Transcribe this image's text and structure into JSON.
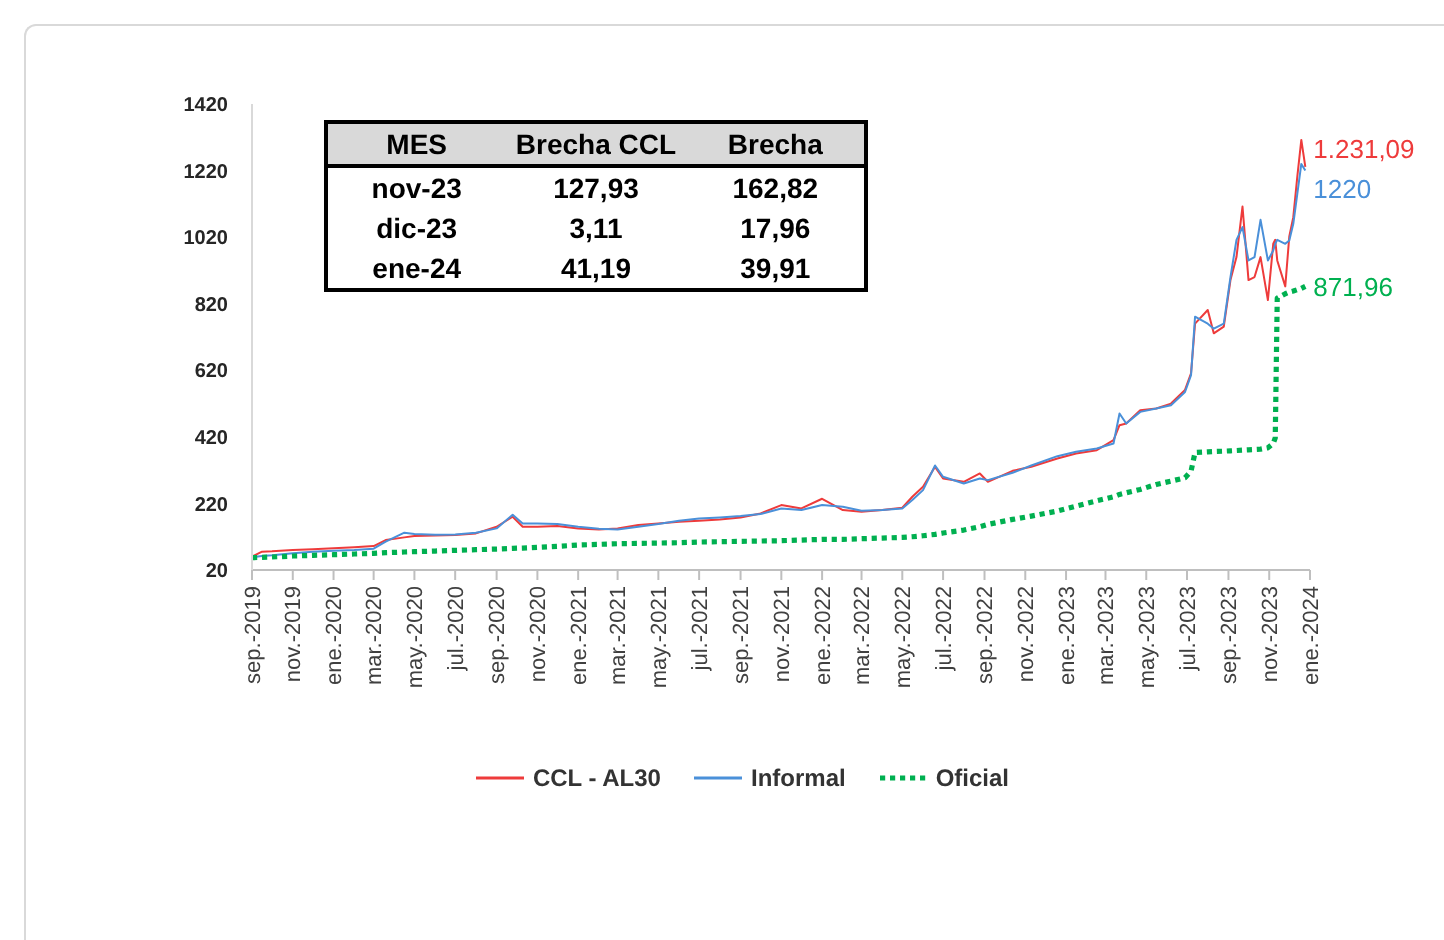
{
  "chart_data": {
    "type": "line",
    "x": [
      "2019-09-01",
      "2019-09-16",
      "2019-10-01",
      "2019-11-01",
      "2019-12-01",
      "2020-01-01",
      "2020-02-01",
      "2020-03-01",
      "2020-03-19",
      "2020-04-16",
      "2020-05-01",
      "2020-06-01",
      "2020-07-01",
      "2020-08-01",
      "2020-09-01",
      "2020-09-25",
      "2020-10-10",
      "2020-11-01",
      "2020-12-01",
      "2021-01-01",
      "2021-02-01",
      "2021-03-01",
      "2021-04-01",
      "2021-05-01",
      "2021-06-01",
      "2021-07-01",
      "2021-08-01",
      "2021-09-01",
      "2021-10-01",
      "2021-11-01",
      "2021-12-01",
      "2022-01-01",
      "2022-02-01",
      "2022-03-01",
      "2022-04-01",
      "2022-05-01",
      "2022-05-16",
      "2022-06-01",
      "2022-06-19",
      "2022-07-01",
      "2022-08-01",
      "2022-08-25",
      "2022-09-06",
      "2022-10-13",
      "2022-11-10",
      "2022-12-19",
      "2023-01-16",
      "2023-02-16",
      "2023-03-13",
      "2023-03-22",
      "2023-04-01",
      "2023-04-22",
      "2023-05-16",
      "2023-06-07",
      "2023-06-28",
      "2023-07-07",
      "2023-07-13",
      "2023-08-01",
      "2023-08-10",
      "2023-08-25",
      "2023-09-04",
      "2023-09-13",
      "2023-09-22",
      "2023-10-01",
      "2023-10-10",
      "2023-10-19",
      "2023-10-30",
      "2023-11-07",
      "2023-11-10",
      "2023-11-13",
      "2023-11-25",
      "2023-12-01",
      "2023-12-07",
      "2023-12-13",
      "2023-12-19",
      "2023-12-25"
    ],
    "xlim": [
      "2019-09-01",
      "2024-01-01"
    ],
    "xticks": [
      {
        "value": "2019-09",
        "label": "sep.-2019"
      },
      {
        "value": "2019-11",
        "label": "nov.-2019"
      },
      {
        "value": "2020-01",
        "label": "ene.-2020"
      },
      {
        "value": "2020-03",
        "label": "mar.-2020"
      },
      {
        "value": "2020-05",
        "label": "may.-2020"
      },
      {
        "value": "2020-07",
        "label": "jul.-2020"
      },
      {
        "value": "2020-09",
        "label": "sep.-2020"
      },
      {
        "value": "2020-11",
        "label": "nov.-2020"
      },
      {
        "value": "2021-01",
        "label": "ene.-2021"
      },
      {
        "value": "2021-03",
        "label": "mar.-2021"
      },
      {
        "value": "2021-05",
        "label": "may.-2021"
      },
      {
        "value": "2021-07",
        "label": "jul.-2021"
      },
      {
        "value": "2021-09",
        "label": "sep.-2021"
      },
      {
        "value": "2021-11",
        "label": "nov.-2021"
      },
      {
        "value": "2022-01",
        "label": "ene.-2022"
      },
      {
        "value": "2022-03",
        "label": "mar.-2022"
      },
      {
        "value": "2022-05",
        "label": "may.-2022"
      },
      {
        "value": "2022-07",
        "label": "jul.-2022"
      },
      {
        "value": "2022-09",
        "label": "sep.-2022"
      },
      {
        "value": "2022-11",
        "label": "nov.-2022"
      },
      {
        "value": "2023-01",
        "label": "ene.-2023"
      },
      {
        "value": "2023-03",
        "label": "mar.-2023"
      },
      {
        "value": "2023-05",
        "label": "may.-2023"
      },
      {
        "value": "2023-07",
        "label": "jul.-2023"
      },
      {
        "value": "2023-09",
        "label": "sep.-2023"
      },
      {
        "value": "2023-11",
        "label": "nov.-2023"
      },
      {
        "value": "2024-01",
        "label": "ene.-2024"
      }
    ],
    "ylim": [
      20,
      1420
    ],
    "yticks": [
      20,
      220,
      420,
      620,
      820,
      1020,
      1220,
      1420
    ],
    "legend": "bottom",
    "marker": "none",
    "series": [
      {
        "name": "CCL - AL30",
        "color": "#ee3b3b",
        "line_style": "solid",
        "values": [
          60,
          75,
          76,
          80,
          82,
          85,
          88,
          92,
          110,
          118,
          122,
          124,
          125,
          130,
          150,
          180,
          150,
          150,
          152,
          145,
          142,
          145,
          155,
          160,
          165,
          168,
          172,
          178,
          190,
          215,
          205,
          234,
          200,
          195,
          200,
          207,
          240,
          270,
          330,
          295,
          285,
          310,
          285,
          318,
          330,
          355,
          370,
          380,
          410,
          455,
          460,
          500,
          505,
          520,
          561,
          611,
          760,
          801,
          731,
          751,
          891,
          960,
          1112,
          891,
          900,
          960,
          831,
          1000,
          1012,
          950,
          872,
          1022,
          1080,
          1202,
          1312,
          1231.09
        ],
        "value_labels": [
          null,
          null,
          null,
          null,
          null,
          null,
          null,
          null,
          null,
          null,
          null,
          null,
          null,
          null,
          null,
          null,
          null,
          null,
          null,
          null,
          null,
          null,
          null,
          null,
          null,
          null,
          null,
          null,
          null,
          null,
          null,
          null,
          null,
          null,
          null,
          null,
          null,
          null,
          null,
          null,
          null,
          null,
          null,
          null,
          null,
          null,
          null,
          null,
          null,
          null,
          null,
          null,
          null,
          null,
          null,
          null,
          null,
          null,
          null,
          null,
          null,
          null,
          null,
          null,
          null,
          null,
          null,
          null,
          null,
          null,
          null,
          null,
          null,
          null,
          null,
          "1.231,09"
        ]
      },
      {
        "name": "Informal",
        "color": "#4a90d9",
        "line_style": "solid",
        "values": [
          58,
          62,
          64,
          70,
          75,
          78,
          80,
          84,
          105,
          132,
          128,
          126,
          127,
          132,
          145,
          186,
          160,
          160,
          158,
          150,
          144,
          142,
          150,
          158,
          168,
          175,
          178,
          182,
          188,
          205,
          200,
          215,
          210,
          198,
          200,
          205,
          230,
          260,
          334,
          300,
          280,
          295,
          290,
          312,
          334,
          362,
          375,
          385,
          400,
          490,
          460,
          495,
          505,
          515,
          555,
          605,
          781,
          760,
          745,
          760,
          900,
          1012,
          1050,
          950,
          960,
          1072,
          950,
          980,
          1000,
          1012,
          1000,
          1010,
          1060,
          1150,
          1240,
          1220
        ],
        "value_labels": [
          null,
          null,
          null,
          null,
          null,
          null,
          null,
          null,
          null,
          null,
          null,
          null,
          null,
          null,
          null,
          null,
          null,
          null,
          null,
          null,
          null,
          null,
          null,
          null,
          null,
          null,
          null,
          null,
          null,
          null,
          null,
          null,
          null,
          null,
          null,
          null,
          null,
          null,
          null,
          null,
          null,
          null,
          null,
          null,
          null,
          null,
          null,
          null,
          null,
          null,
          null,
          null,
          null,
          null,
          null,
          null,
          null,
          null,
          null,
          null,
          null,
          null,
          null,
          null,
          null,
          null,
          null,
          null,
          null,
          null,
          null,
          null,
          null,
          null,
          null,
          "1220"
        ]
      },
      {
        "name": "Oficial",
        "color": "#00b050",
        "line_style": "dotted",
        "values": [
          57,
          58,
          59,
          62,
          64,
          66,
          68,
          70,
          72,
          74,
          75,
          77,
          79,
          81,
          83,
          85,
          86,
          88,
          91,
          95,
          97,
          99,
          100,
          101,
          102,
          104,
          105,
          106,
          107,
          108,
          110,
          112,
          112,
          114,
          116,
          118,
          120,
          123,
          127,
          131,
          140,
          150,
          157,
          172,
          182,
          197,
          212,
          228,
          240,
          247,
          252,
          262,
          277,
          287,
          297,
          317,
          373,
          375,
          376,
          377,
          378,
          379,
          380,
          381,
          382,
          383,
          387,
          400,
          417,
          837,
          850,
          855,
          858,
          862,
          866,
          871.96
        ],
        "value_labels": [
          null,
          null,
          null,
          null,
          null,
          null,
          null,
          null,
          null,
          null,
          null,
          null,
          null,
          null,
          null,
          null,
          null,
          null,
          null,
          null,
          null,
          null,
          null,
          null,
          null,
          null,
          null,
          null,
          null,
          null,
          null,
          null,
          null,
          null,
          null,
          null,
          null,
          null,
          null,
          null,
          null,
          null,
          null,
          null,
          null,
          null,
          null,
          null,
          null,
          null,
          null,
          null,
          null,
          null,
          null,
          null,
          null,
          null,
          null,
          null,
          null,
          null,
          null,
          null,
          null,
          null,
          null,
          null,
          null,
          null,
          null,
          null,
          null,
          null,
          null,
          "871,96"
        ]
      }
    ],
    "annotations": [
      "MES",
      "Brecha CCL",
      "Brecha",
      "nov-23",
      "127,93",
      "162,82",
      "dic-23",
      "3,11",
      "17,96",
      "ene-24",
      "41,19",
      "39,91"
    ]
  }
}
